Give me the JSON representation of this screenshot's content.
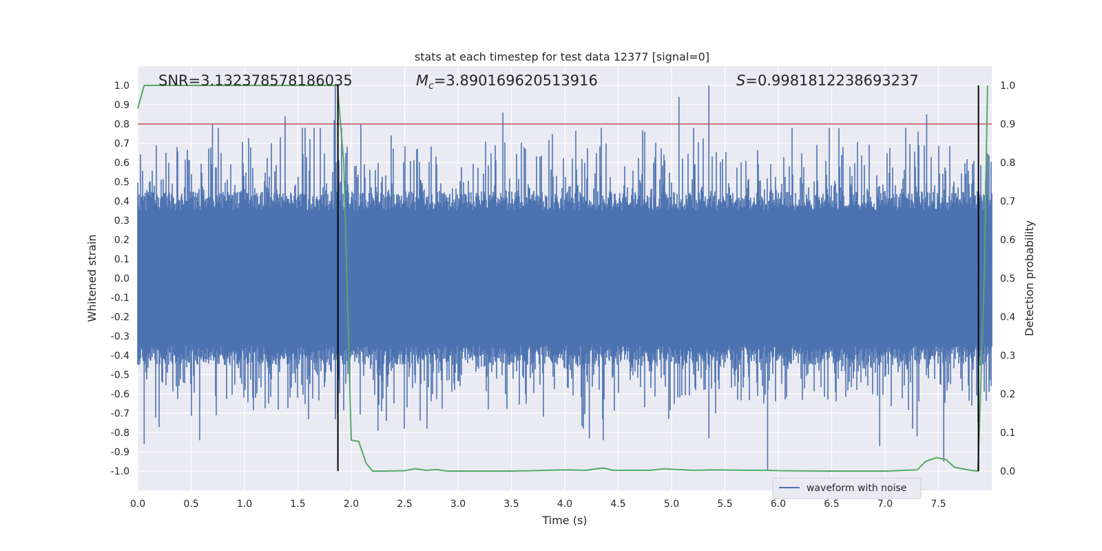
{
  "chart_data": {
    "type": "line",
    "title": "stats at each timestep for test data 12377 [signal=0]",
    "xlabel": "Time (s)",
    "ylabel": "Whitened strain",
    "ylabel_right": "Detection probability",
    "xlim": [
      0.0,
      8.0
    ],
    "ylim": [
      -1.1,
      1.1
    ],
    "ylim_right": [
      -0.05,
      1.05
    ],
    "x_ticks": [
      "0.0",
      "0.5",
      "1.0",
      "1.5",
      "2.0",
      "2.5",
      "3.0",
      "3.5",
      "4.0",
      "4.5",
      "5.0",
      "5.5",
      "6.0",
      "6.5",
      "7.0",
      "7.5"
    ],
    "y_ticks": [
      "1.0",
      "0.9",
      "0.8",
      "0.7",
      "0.6",
      "0.5",
      "0.4",
      "0.3",
      "0.2",
      "0.1",
      "0.0",
      "-0.1",
      "-0.2",
      "-0.3",
      "-0.4",
      "-0.5",
      "-0.6",
      "-0.7",
      "-0.8",
      "-0.9",
      "-1.0"
    ],
    "y_ticks_right": [
      "1.0",
      "0.9",
      "0.8",
      "0.7",
      "0.6",
      "0.5",
      "0.4",
      "0.3",
      "0.2",
      "0.1",
      "0.0"
    ],
    "grid": true,
    "annotations": {
      "snr": "SNR=3.132378578186035",
      "mc_symbol": "M",
      "mc_sub": "c",
      "mc_value": "=3.890169620513916",
      "s_symbol": "S",
      "s_value": "=0.9981812238693237"
    },
    "threshold": {
      "value": 0.9,
      "axis": "right",
      "color": "#c44e52"
    },
    "vertical_lines": [
      1.875,
      7.875
    ],
    "series": [
      {
        "name": "waveform with noise",
        "axis": "left",
        "color": "#4c72b0",
        "kind": "noise",
        "envelope_typical": 0.45,
        "peaks": [
          {
            "x": 0.06,
            "y": -0.86
          },
          {
            "x": 0.58,
            "y": -0.84
          },
          {
            "x": 1.38,
            "y": 0.84
          },
          {
            "x": 1.84,
            "y": 0.82
          },
          {
            "x": 1.85,
            "y": 1.0
          },
          {
            "x": 2.09,
            "y": 0.8
          },
          {
            "x": 3.42,
            "y": 0.86
          },
          {
            "x": 4.23,
            "y": -0.83
          },
          {
            "x": 4.36,
            "y": -0.84
          },
          {
            "x": 5.07,
            "y": 0.94
          },
          {
            "x": 5.35,
            "y": 1.0
          },
          {
            "x": 5.35,
            "y": -0.83
          },
          {
            "x": 5.9,
            "y": -1.0
          },
          {
            "x": 6.95,
            "y": -0.87
          },
          {
            "x": 7.39,
            "y": 0.85
          },
          {
            "x": 7.55,
            "y": -0.95
          },
          {
            "x": 7.95,
            "y": 0.71
          },
          {
            "x": 0.7,
            "y": 0.8
          },
          {
            "x": 1.71,
            "y": 0.78
          },
          {
            "x": 2.25,
            "y": -0.79
          },
          {
            "x": 7.3,
            "y": -0.82
          }
        ]
      },
      {
        "name": "detection probability",
        "axis": "right",
        "color": "#55a868",
        "x": [
          0.0,
          0.06,
          0.1,
          0.5,
          1.0,
          1.5,
          1.87,
          1.93,
          2.0,
          2.07,
          2.14,
          2.2,
          2.3,
          2.5,
          2.6,
          2.7,
          2.8,
          2.9,
          3.0,
          3.5,
          4.0,
          4.2,
          4.3,
          4.36,
          4.45,
          4.6,
          4.8,
          4.93,
          5.05,
          5.2,
          5.4,
          5.7,
          5.9,
          6.0,
          6.5,
          7.0,
          7.3,
          7.38,
          7.48,
          7.57,
          7.65,
          7.8,
          7.87,
          7.93,
          7.96
        ],
        "y": [
          0.94,
          1.0,
          1.0,
          1.0,
          1.0,
          1.0,
          1.0,
          0.8,
          0.08,
          0.077,
          0.02,
          0.0,
          0.0,
          0.001,
          0.006,
          0.002,
          0.004,
          0.0,
          0.0,
          0.0,
          0.003,
          0.002,
          0.006,
          0.008,
          0.002,
          0.002,
          0.002,
          0.006,
          0.004,
          0.002,
          0.003,
          0.002,
          0.002,
          0.001,
          0.0,
          0.0,
          0.003,
          0.025,
          0.035,
          0.03,
          0.01,
          0.002,
          0.0,
          0.5,
          1.0
        ]
      }
    ],
    "legend": {
      "label": "waveform with noise",
      "position": "lower-right"
    }
  }
}
